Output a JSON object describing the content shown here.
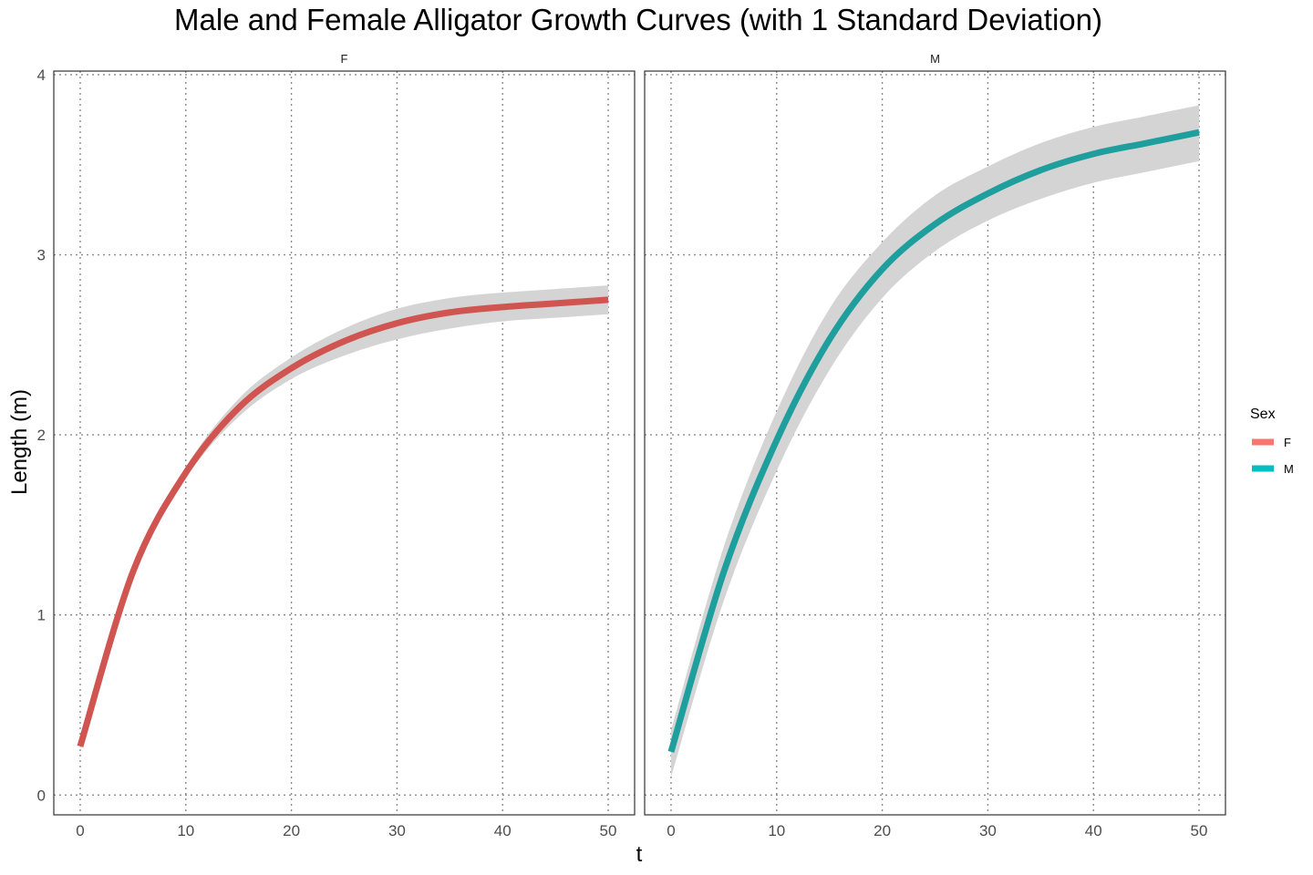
{
  "chart_data": {
    "type": "line",
    "title": "Male and Female Alligator Growth Curves (with 1 Standard Deviation)",
    "xlabel": "t",
    "ylabel": "Length (m)",
    "xlim": [
      -2.5,
      52.5
    ],
    "ylim": [
      -0.11,
      4.02
    ],
    "x_ticks": [
      "0",
      "10",
      "20",
      "30",
      "40",
      "50"
    ],
    "y_ticks": [
      "0",
      "1",
      "2",
      "3",
      "4"
    ],
    "grid": true,
    "legend": {
      "title": "Sex",
      "placement": "right",
      "entries": [
        {
          "label": "F",
          "color": "#F8766D"
        },
        {
          "label": "M",
          "color": "#00BFC4"
        }
      ]
    },
    "panels": [
      {
        "strip_label": "F",
        "series_name": "F",
        "line_color": "#d05450",
        "x": [
          0,
          5,
          10,
          15,
          20,
          25,
          30,
          35,
          40,
          45,
          50
        ],
        "y": [
          0.27,
          1.24,
          1.79,
          2.15,
          2.37,
          2.52,
          2.62,
          2.68,
          2.71,
          2.73,
          2.75
        ],
        "lower": [
          0.25,
          1.22,
          1.76,
          2.1,
          2.31,
          2.44,
          2.53,
          2.59,
          2.63,
          2.65,
          2.67
        ],
        "upper": [
          0.29,
          1.26,
          1.82,
          2.2,
          2.43,
          2.59,
          2.7,
          2.76,
          2.79,
          2.81,
          2.83
        ]
      },
      {
        "strip_label": "M",
        "series_name": "M",
        "line_color": "#1f9e9e",
        "x": [
          0,
          5,
          10,
          15,
          20,
          25,
          30,
          35,
          40,
          45,
          50
        ],
        "y": [
          0.24,
          1.24,
          1.97,
          2.53,
          2.92,
          3.17,
          3.34,
          3.47,
          3.56,
          3.62,
          3.68
        ],
        "lower": [
          0.1,
          1.08,
          1.8,
          2.36,
          2.76,
          3.02,
          3.19,
          3.31,
          3.4,
          3.46,
          3.52
        ],
        "upper": [
          0.36,
          1.38,
          2.13,
          2.7,
          3.07,
          3.33,
          3.49,
          3.62,
          3.71,
          3.77,
          3.83
        ]
      }
    ]
  }
}
